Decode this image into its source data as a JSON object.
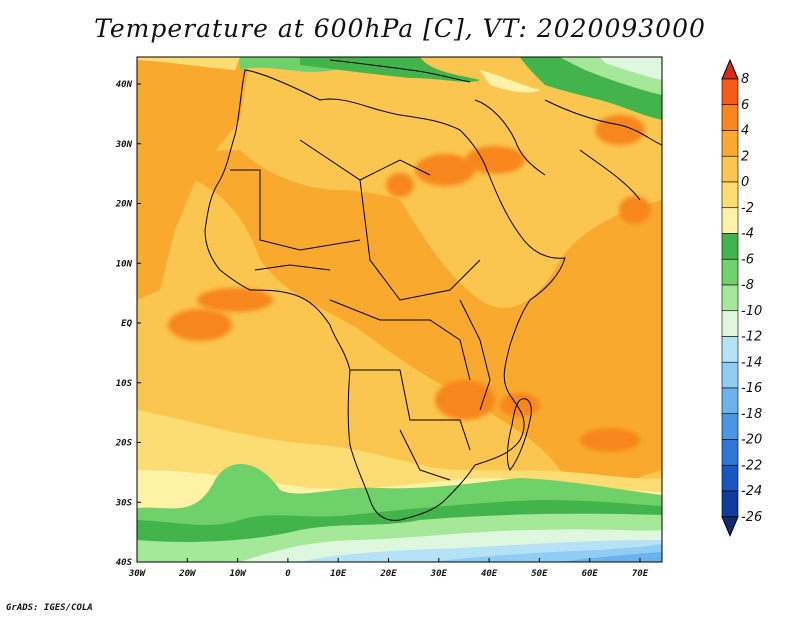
{
  "title": "Temperature at 600hPa [C], VT: 2020093000",
  "credit": "GrADS: IGES/COLA",
  "lat_labels": [
    "40N",
    "30N",
    "20N",
    "10N",
    "EQ",
    "10S",
    "20S",
    "30S",
    "40S"
  ],
  "lon_labels": [
    "30W",
    "20W",
    "10W",
    "0",
    "10E",
    "20E",
    "30E",
    "40E",
    "50E",
    "60E",
    "70E"
  ],
  "colorbar": {
    "labels": [
      "8",
      "6",
      "4",
      "2",
      "0",
      "-2",
      "-4",
      "-6",
      "-8",
      "-10",
      "-12",
      "-14",
      "-16",
      "-18",
      "-20",
      "-22",
      "-24",
      "-26"
    ],
    "colors": [
      "#d72a1c",
      "#f55a19",
      "#f7861d",
      "#f9aa2e",
      "#fbc64f",
      "#fbdd74",
      "#fdf2a6",
      "#43b44c",
      "#6fd16a",
      "#a6e89a",
      "#dff7df",
      "#b6e2f8",
      "#8fcdf5",
      "#6bb3ef",
      "#4a95e4",
      "#2f77d6",
      "#1a56c2",
      "#0f3c9c",
      "#102a6f"
    ]
  },
  "map": {
    "region": "Africa",
    "variable": "Temperature at 600hPa",
    "units": "C"
  }
}
